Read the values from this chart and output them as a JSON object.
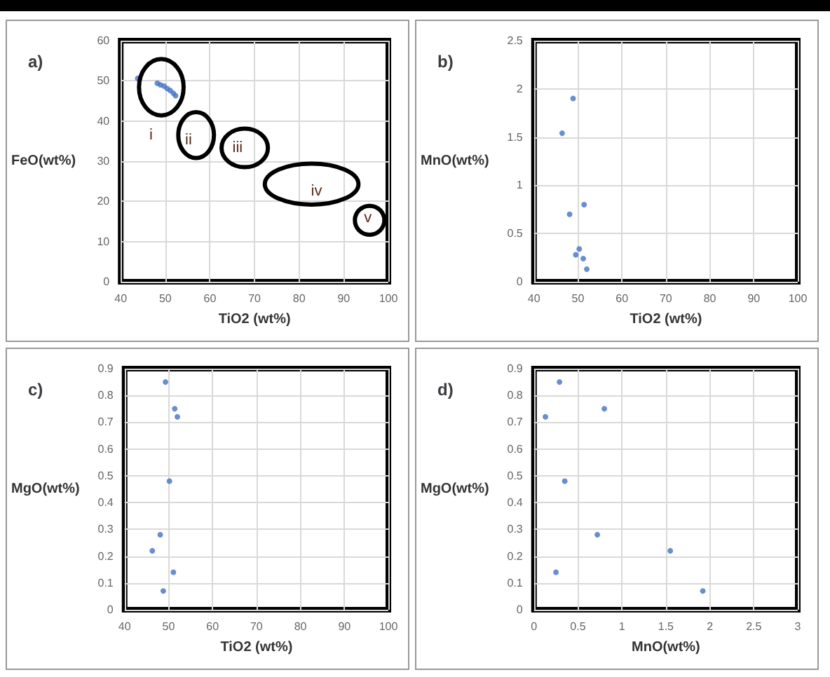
{
  "chart_data": [
    {
      "type": "scatter",
      "title": "a)",
      "xlabel": "TiO2 (wt%)",
      "ylabel": "FeO(wt%)",
      "x": [
        43.8,
        48.2,
        48.9,
        49.7,
        50.4,
        51.1,
        51.8,
        52.3
      ],
      "series": [
        {
          "color": "#4472c4",
          "values": [
            50.6,
            49.4,
            49.0,
            48.7,
            48.1,
            47.6,
            46.9,
            46.3
          ]
        }
      ],
      "xlim": [
        40,
        100
      ],
      "xticks": [
        40,
        50,
        60,
        70,
        80,
        90,
        100
      ],
      "ylim": [
        0,
        60
      ],
      "yticks": [
        0,
        10,
        20,
        30,
        40,
        50,
        60
      ],
      "grid": true,
      "marker": "circle",
      "annotations": [
        "i",
        "ii",
        "iii",
        "iv",
        "v"
      ]
    },
    {
      "type": "scatter",
      "title": "b)",
      "xlabel": "TiO2 (wt%)",
      "ylabel": "MnO(wt%)",
      "x": [
        46.4,
        48.9,
        48.1,
        51.4,
        49.5,
        50.3,
        51.2,
        52.0
      ],
      "series": [
        {
          "color": "#4472c4",
          "values": [
            1.54,
            1.9,
            0.7,
            0.8,
            0.28,
            0.34,
            0.24,
            0.13
          ]
        }
      ],
      "xlim": [
        40,
        100
      ],
      "xticks": [
        40,
        50,
        60,
        70,
        80,
        90,
        100
      ],
      "ylim": [
        0,
        2.5
      ],
      "yticks": [
        0,
        0.5,
        1,
        1.5,
        2,
        2.5
      ],
      "grid": true,
      "marker": "circle"
    },
    {
      "type": "scatter",
      "title": "c)",
      "xlabel": "TiO2 (wt%)",
      "ylabel": "MgO(wt%)",
      "x": [
        49.3,
        51.4,
        52.0,
        50.2,
        48.1,
        46.3,
        51.1,
        48.8
      ],
      "series": [
        {
          "color": "#4472c4",
          "values": [
            0.85,
            0.75,
            0.72,
            0.48,
            0.28,
            0.22,
            0.14,
            0.07
          ]
        }
      ],
      "xlim": [
        40,
        100
      ],
      "xticks": [
        40,
        50,
        60,
        70,
        80,
        90,
        100
      ],
      "ylim": [
        0,
        0.9
      ],
      "yticks": [
        0,
        0.1,
        0.2,
        0.3,
        0.4,
        0.5,
        0.6,
        0.7,
        0.8,
        0.9
      ],
      "grid": true,
      "marker": "circle"
    },
    {
      "type": "scatter",
      "title": "d)",
      "xlabel": "MnO(wt%)",
      "ylabel": "MgO(wt%)",
      "x": [
        0.13,
        0.29,
        0.8,
        0.35,
        0.72,
        0.25,
        1.55,
        1.92
      ],
      "series": [
        {
          "color": "#4472c4",
          "values": [
            0.72,
            0.85,
            0.75,
            0.48,
            0.28,
            0.14,
            0.22,
            0.07
          ]
        }
      ],
      "xlim": [
        0,
        3
      ],
      "xticks": [
        0,
        0.5,
        1,
        1.5,
        2,
        2.5,
        3
      ],
      "ylim": [
        0,
        0.9
      ],
      "yticks": [
        0,
        0.1,
        0.2,
        0.3,
        0.4,
        0.5,
        0.6,
        0.7,
        0.8,
        0.9
      ],
      "grid": true,
      "marker": "circle"
    }
  ]
}
